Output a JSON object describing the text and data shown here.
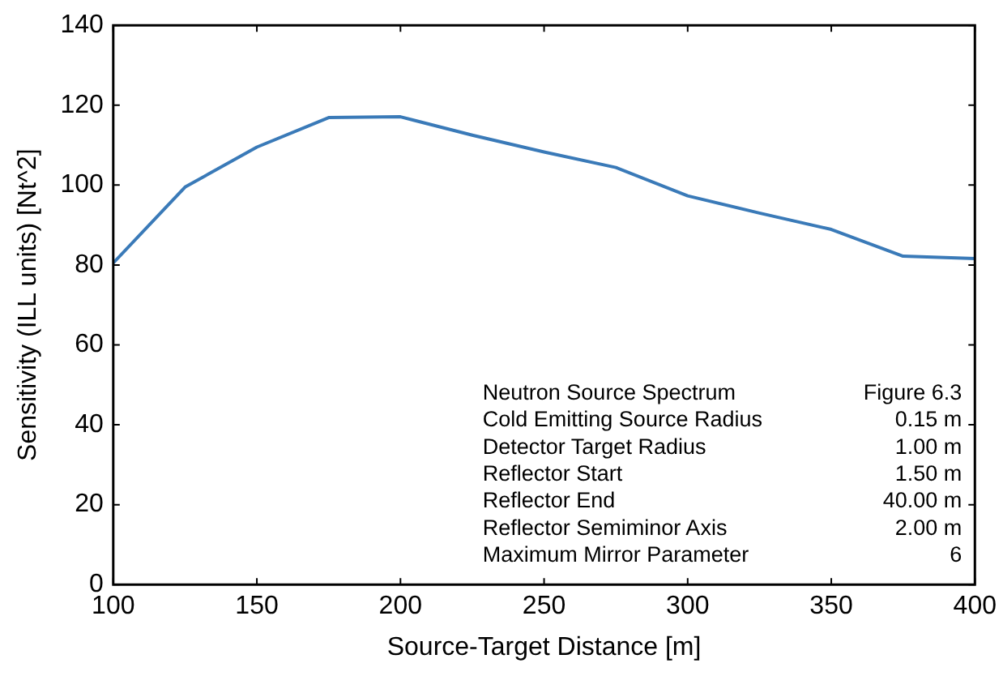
{
  "chart_data": {
    "type": "line",
    "xlabel": "Source-Target Distance [m]",
    "ylabel": "Sensitivity (ILL units) [Nt^2]",
    "x": [
      100,
      125,
      150,
      175,
      200,
      225,
      250,
      275,
      300,
      325,
      350,
      375,
      400
    ],
    "series": [
      {
        "color": "#3a7ab8",
        "values": [
          80.5,
          99.5,
          109.5,
          116.9,
          117.1,
          112.5,
          108.3,
          104.4,
          97.3,
          93,
          88.9,
          82.2,
          81.6
        ]
      }
    ],
    "xlim": [
      100,
      400
    ],
    "xticks": [
      100,
      150,
      200,
      250,
      300,
      350,
      400
    ],
    "ylim": [
      0,
      140
    ],
    "yticks": [
      0,
      20,
      40,
      60,
      80,
      100,
      120,
      140
    ],
    "grid": false,
    "legend": false,
    "marker": "none",
    "line_style": "solid",
    "annotations": [
      "Neutron Source Spectrum",
      "Figure 6.3",
      "Cold Emitting Source Radius",
      "0.15 m",
      "Detector Target Radius",
      "1.00 m",
      "Reflector Start",
      "1.50 m",
      "Reflector End",
      "40.00 m",
      "Reflector Semiminor Axis",
      "2.00 m",
      "Maximum Mirror Parameter",
      "6"
    ]
  }
}
